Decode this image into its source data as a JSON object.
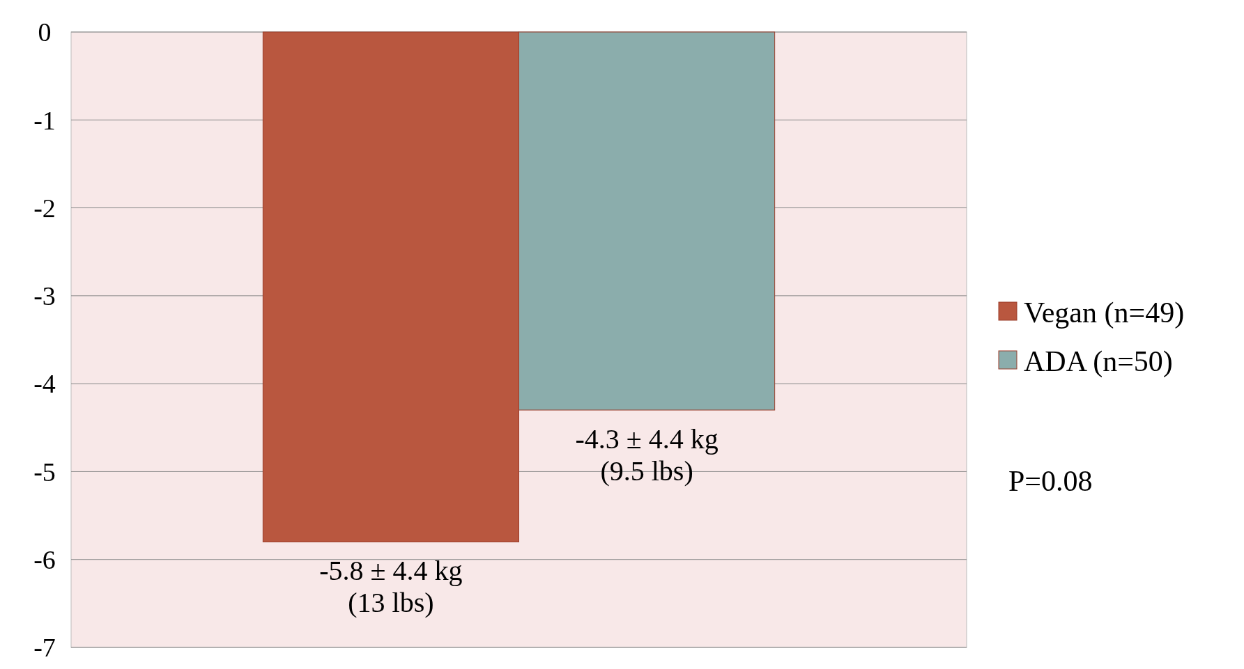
{
  "chart_data": {
    "type": "bar",
    "categories": [
      null
    ],
    "series": [
      {
        "name": "Vegan (n=49)",
        "color": "#b9573f",
        "values": [
          -5.8
        ],
        "value_labels": [
          "-5.8 ± 4.4 kg\n(13 lbs)"
        ]
      },
      {
        "name": "ADA (n=50)",
        "color": "#8badac",
        "values": [
          -4.3
        ],
        "value_labels": [
          "-4.3 ± 4.4 kg\n(9.5 lbs)"
        ]
      }
    ],
    "ylim": [
      -7,
      0
    ],
    "yticks": [
      0,
      -1,
      -2,
      -3,
      -4,
      -5,
      -6,
      -7
    ],
    "grid": "y",
    "legend": "right",
    "annotations": [
      "P=0.08"
    ]
  }
}
